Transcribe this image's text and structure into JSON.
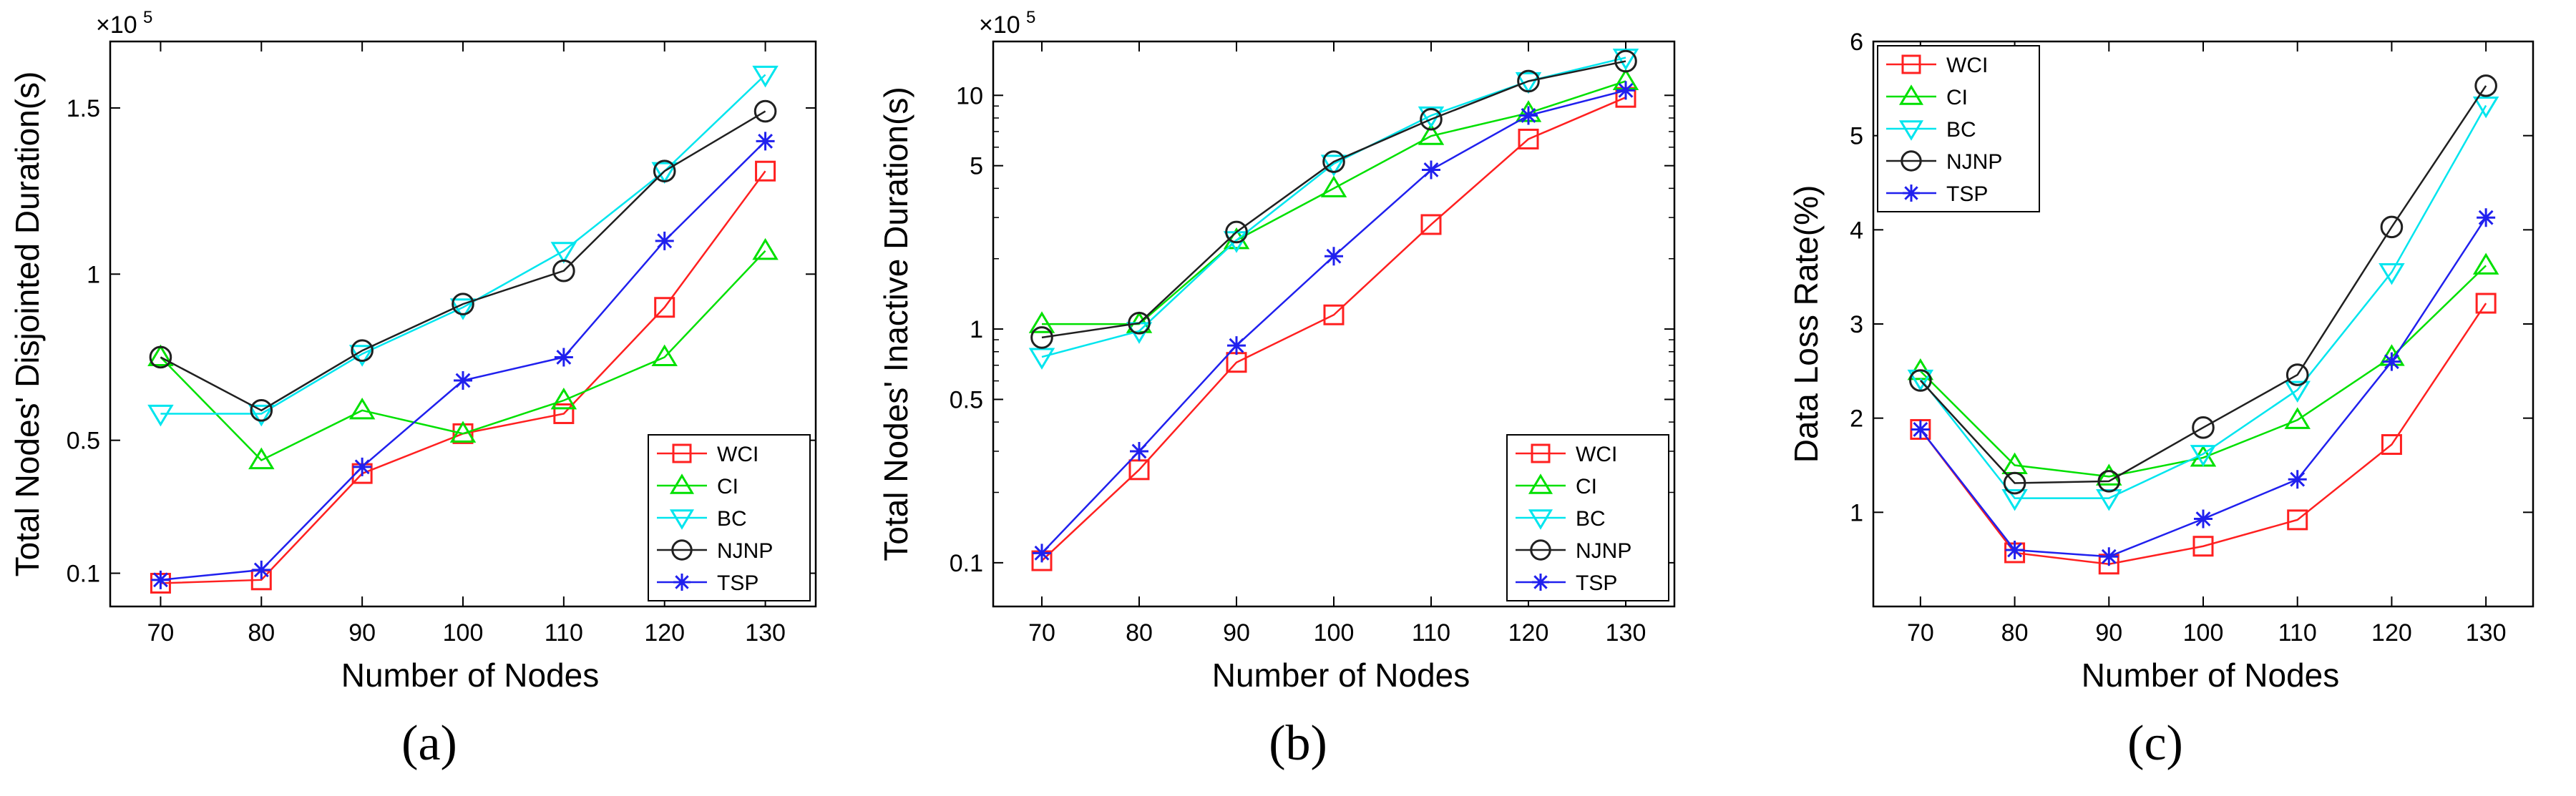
{
  "captions": [
    "(a)",
    "(b)",
    "(c)"
  ],
  "series_colors": {
    "WCI": "#ff2020",
    "CI": "#00e000",
    "BC": "#00e5ee",
    "NJNP": "#202020",
    "TSP": "#2020ee"
  },
  "series_markers": {
    "WCI": "square",
    "CI": "triangle-up",
    "BC": "triangle-down",
    "NJNP": "circle",
    "TSP": "asterisk"
  },
  "chart_data": [
    {
      "type": "line",
      "panel": "(a)",
      "x": [
        70,
        80,
        90,
        100,
        110,
        120,
        130
      ],
      "xlabel": "Number of Nodes",
      "ylabel": "Total Nodes' Disjointed Duration(s)",
      "y_multiplier": "×10",
      "y_multiplier_exp": "5",
      "y_scale": "linear",
      "ylim": [
        0,
        1.7
      ],
      "y_ticks": [
        0.1,
        0.5,
        1,
        1.5
      ],
      "y_tick_labels": [
        "0.1",
        "0.5",
        "1",
        "1.5"
      ],
      "legend_position": "bottom-right",
      "series": [
        {
          "name": "WCI",
          "values": [
            0.07,
            0.08,
            0.4,
            0.52,
            0.58,
            0.9,
            1.31
          ]
        },
        {
          "name": "CI",
          "values": [
            0.75,
            0.44,
            0.59,
            0.52,
            0.62,
            0.75,
            1.07
          ]
        },
        {
          "name": "BC",
          "values": [
            0.58,
            0.58,
            0.76,
            0.9,
            1.07,
            1.31,
            1.6
          ]
        },
        {
          "name": "NJNP",
          "values": [
            0.75,
            0.59,
            0.77,
            0.91,
            1.01,
            1.31,
            1.49
          ]
        },
        {
          "name": "TSP",
          "values": [
            0.08,
            0.11,
            0.42,
            0.68,
            0.75,
            1.1,
            1.4
          ]
        }
      ]
    },
    {
      "type": "line",
      "panel": "(b)",
      "x": [
        70,
        80,
        90,
        100,
        110,
        120,
        130
      ],
      "xlabel": "Number of Nodes",
      "ylabel": "Total Nodes' Inactive Duration(s)",
      "y_multiplier": "×10",
      "y_multiplier_exp": "5",
      "y_scale": "log",
      "ylim": [
        0.065,
        17
      ],
      "y_ticks": [
        0.1,
        0.5,
        1,
        5,
        10
      ],
      "y_tick_labels": [
        "0.1",
        "0.5",
        "1",
        "5",
        "10"
      ],
      "legend_position": "bottom-right",
      "series": [
        {
          "name": "WCI",
          "values": [
            0.102,
            0.25,
            0.72,
            1.15,
            2.8,
            6.5,
            9.8
          ]
        },
        {
          "name": "CI",
          "values": [
            1.05,
            1.05,
            2.4,
            4.0,
            6.7,
            8.4,
            11.5
          ]
        },
        {
          "name": "BC",
          "values": [
            0.76,
            0.98,
            2.4,
            5.1,
            8.2,
            11.5,
            14.5
          ]
        },
        {
          "name": "NJNP",
          "values": [
            0.92,
            1.06,
            2.6,
            5.2,
            7.9,
            11.5,
            14.0
          ]
        },
        {
          "name": "TSP",
          "values": [
            0.11,
            0.3,
            0.85,
            2.05,
            4.8,
            8.2,
            10.5
          ]
        }
      ]
    },
    {
      "type": "line",
      "panel": "(c)",
      "x": [
        70,
        80,
        90,
        100,
        110,
        120,
        130
      ],
      "xlabel": "Number of Nodes",
      "ylabel": "Data Loss Rate(%)",
      "y_scale": "linear",
      "ylim": [
        0,
        6
      ],
      "y_ticks": [
        1,
        2,
        3,
        4,
        5,
        6
      ],
      "y_tick_labels": [
        "1",
        "2",
        "3",
        "4",
        "5",
        "6"
      ],
      "legend_position": "top-left",
      "series": [
        {
          "name": "WCI",
          "values": [
            1.88,
            0.57,
            0.45,
            0.64,
            0.92,
            1.72,
            3.22
          ]
        },
        {
          "name": "CI",
          "values": [
            2.5,
            1.5,
            1.38,
            1.58,
            1.98,
            2.65,
            3.62
          ]
        },
        {
          "name": "BC",
          "values": [
            2.42,
            1.15,
            1.15,
            1.62,
            2.3,
            3.55,
            5.32
          ]
        },
        {
          "name": "NJNP",
          "values": [
            2.4,
            1.31,
            1.33,
            1.9,
            2.46,
            4.03,
            5.53
          ]
        },
        {
          "name": "TSP",
          "values": [
            1.88,
            0.6,
            0.53,
            0.93,
            1.35,
            2.6,
            4.13
          ]
        }
      ]
    }
  ]
}
